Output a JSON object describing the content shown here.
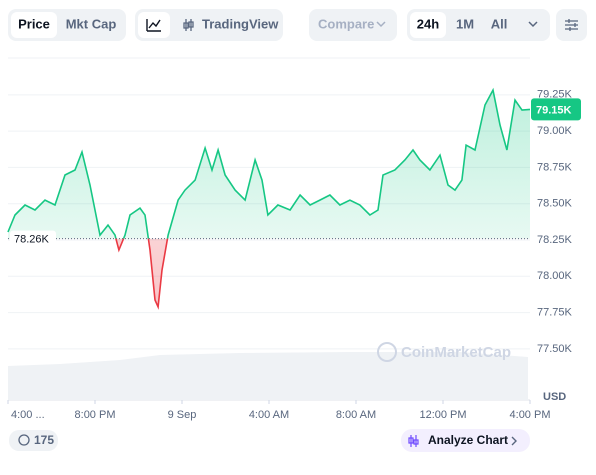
{
  "toolbar": {
    "tabs": [
      "Price",
      "Mkt Cap"
    ],
    "tradingview": "TradingView",
    "compare": "Compare",
    "ranges": [
      "24h",
      "1M",
      "All"
    ]
  },
  "chart_data": {
    "type": "line",
    "x": [
      0,
      0.32,
      0.78,
      1.24,
      1.7,
      2.16,
      2.62,
      3.08,
      3.4,
      3.77,
      4.23,
      4.6,
      4.92,
      5.1,
      5.38,
      5.61,
      6.07,
      6.3,
      6.53,
      6.76,
      6.9,
      7.08,
      7.36,
      7.82,
      8.14,
      8.6,
      9.06,
      9.38,
      9.66,
      9.98,
      10.44,
      10.9,
      11.36,
      11.68,
      11.95,
      12.41,
      12.97,
      13.43,
      13.89,
      14.34,
      14.8,
      15.26,
      15.72,
      16.18,
      16.64,
      17.01,
      17.24,
      17.79,
      18.25,
      18.62,
      18.94,
      19.4,
      19.86,
      20.23,
      20.55,
      20.87,
      21.06,
      21.47,
      21.93,
      22.3,
      22.62,
      22.94,
      23.31,
      23.63,
      24
    ],
    "values": [
      78305,
      78422,
      78491,
      78457,
      78525,
      78491,
      78698,
      78732,
      78856,
      78629,
      78284,
      78353,
      78284,
      78181,
      78284,
      78422,
      78470,
      78422,
      78181,
      77837,
      77789,
      78043,
      78284,
      78525,
      78594,
      78663,
      78884,
      78732,
      78870,
      78698,
      78594,
      78525,
      78801,
      78663,
      78422,
      78491,
      78457,
      78560,
      78491,
      78525,
      78560,
      78491,
      78525,
      78491,
      78422,
      78457,
      78698,
      78732,
      78801,
      78870,
      78801,
      78732,
      78835,
      78629,
      78594,
      78663,
      78904,
      78870,
      79180,
      79283,
      79042,
      78870,
      79214,
      79145,
      79150
    ],
    "color": "#16c784",
    "down_color": "#ea3943",
    "xlim": [
      0,
      24
    ],
    "xticks": [
      {
        "value": 0,
        "label": "4:00 ..."
      },
      {
        "value": 4,
        "label": "8:00 PM"
      },
      {
        "value": 8,
        "label": "9 Sep"
      },
      {
        "value": 12,
        "label": "4:00 AM"
      },
      {
        "value": 16,
        "label": "8:00 AM"
      },
      {
        "value": 20,
        "label": "12:00 PM"
      },
      {
        "value": 24,
        "label": "4:00 PM"
      }
    ],
    "ylim": [
      77148,
      79490
    ],
    "yticks": [
      {
        "value": 77500,
        "label": "77.50K"
      },
      {
        "value": 77750,
        "label": "77.75K"
      },
      {
        "value": 78000,
        "label": "78.00K"
      },
      {
        "value": 78250,
        "label": "78.25K"
      },
      {
        "value": 78500,
        "label": "78.50K"
      },
      {
        "value": 78750,
        "label": "78.75K"
      },
      {
        "value": 79000,
        "label": "79.00K"
      },
      {
        "value": 79250,
        "label": "79.25K"
      }
    ],
    "grid": true,
    "baseline": {
      "value": 78260,
      "label": "78.26K"
    },
    "last_price": {
      "value": 79150,
      "label": "79.15K"
    },
    "currency": "USD",
    "watermark": "CoinMarketCap"
  },
  "footer": {
    "count": 175,
    "analyze": "Analyze Chart"
  }
}
